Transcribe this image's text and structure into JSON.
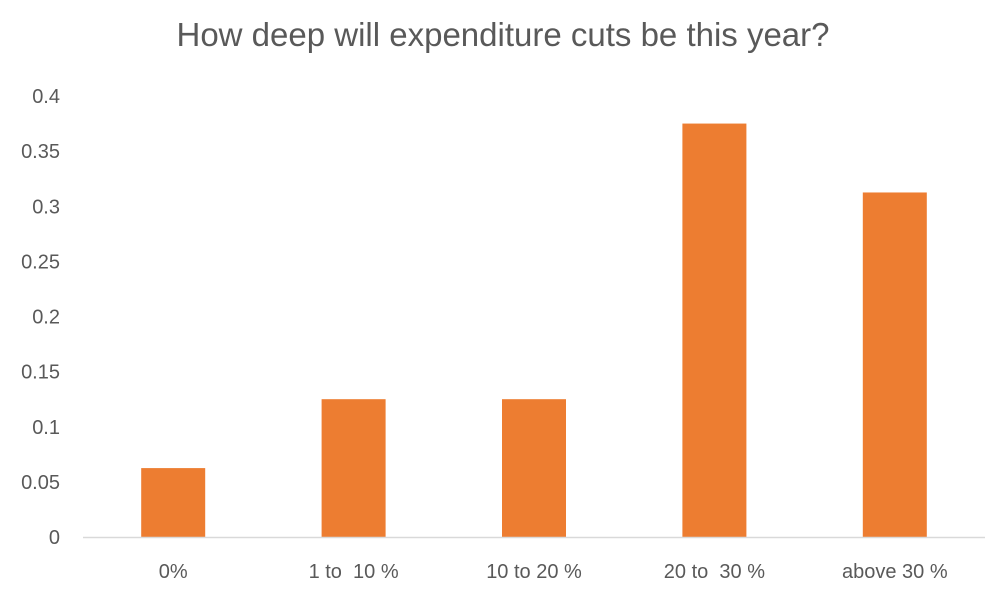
{
  "chart_data": {
    "type": "bar",
    "title": "How deep will expenditure cuts be this year?",
    "categories": [
      "0%",
      "1 to  10 %",
      "10 to 20 %",
      "20 to  30 %",
      "above 30 %"
    ],
    "values": [
      0.0625,
      0.125,
      0.125,
      0.375,
      0.3125
    ],
    "ylim": [
      0,
      0.4
    ],
    "yticks": [
      "0",
      "0.05",
      "0.1",
      "0.15",
      "0.2",
      "0.25",
      "0.3",
      "0.35",
      "0.4"
    ],
    "grid": false,
    "legend": "none",
    "bar_color": "#ED7D31",
    "axis_color": "#D9D9D9",
    "text_color": "#595959"
  }
}
